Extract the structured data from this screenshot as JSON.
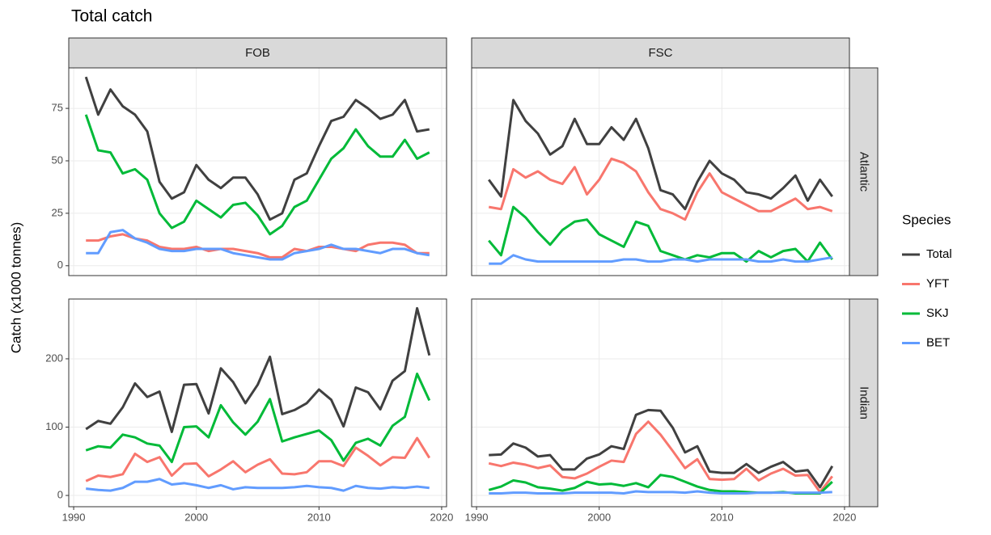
{
  "title": "Total catch",
  "y_label": "Catch (x1000 tonnes)",
  "legend": {
    "title": "Species"
  },
  "facets": {
    "columns": [
      "FOB",
      "FSC"
    ],
    "rows": [
      "Atlantic",
      "Indian"
    ]
  },
  "chart_data": [
    {
      "type": "line",
      "x": [
        1991,
        1992,
        1993,
        1994,
        1995,
        1996,
        1997,
        1998,
        1999,
        2000,
        2001,
        2002,
        2003,
        2004,
        2005,
        2006,
        2007,
        2008,
        2009,
        2010,
        2011,
        2012,
        2013,
        2014,
        2015,
        2016,
        2017,
        2018,
        2019
      ],
      "xlim": [
        1989.6,
        2020.4
      ],
      "xticks": [
        1990,
        2000,
        2010,
        2020
      ],
      "ylim": [
        -4.7,
        94.3
      ],
      "yticks": [
        0,
        25,
        50,
        75
      ],
      "grid": true,
      "series": [
        {
          "name": "Total",
          "color": "#404040",
          "values": [
            90,
            72,
            84,
            76,
            72,
            64,
            40,
            32,
            35,
            48,
            41,
            37,
            42,
            42,
            34,
            22,
            25,
            41,
            44,
            57,
            69,
            71,
            79,
            75,
            70,
            72,
            79,
            64,
            65
          ]
        },
        {
          "name": "YFT",
          "color": "#F8766D",
          "values": [
            12,
            12,
            14,
            15,
            13,
            12,
            9,
            8,
            8,
            9,
            7,
            8,
            8,
            7,
            6,
            4,
            4,
            8,
            7,
            9,
            9,
            8,
            7,
            10,
            11,
            11,
            10,
            6,
            6
          ]
        },
        {
          "name": "SKJ",
          "color": "#00BA38",
          "values": [
            72,
            55,
            54,
            44,
            46,
            41,
            25,
            18,
            21,
            31,
            27,
            23,
            29,
            30,
            24,
            15,
            19,
            28,
            31,
            41,
            51,
            56,
            65,
            57,
            52,
            52,
            60,
            51,
            54
          ]
        },
        {
          "name": "BET",
          "color": "#619CFF",
          "values": [
            6,
            6,
            16,
            17,
            13,
            11,
            8,
            7,
            7,
            8,
            8,
            8,
            6,
            5,
            4,
            3,
            3,
            6,
            7,
            8,
            10,
            8,
            8,
            7,
            6,
            8,
            8,
            6,
            5
          ]
        }
      ]
    },
    {
      "type": "line",
      "x": [
        1991,
        1992,
        1993,
        1994,
        1995,
        1996,
        1997,
        1998,
        1999,
        2000,
        2001,
        2002,
        2003,
        2004,
        2005,
        2006,
        2007,
        2008,
        2009,
        2010,
        2011,
        2012,
        2013,
        2014,
        2015,
        2016,
        2017,
        2018,
        2019
      ],
      "xlim": [
        1989.6,
        2020.4
      ],
      "xticks": [
        1990,
        2000,
        2010,
        2020
      ],
      "ylim": [
        -4.7,
        94.3
      ],
      "yticks": [
        0,
        25,
        50,
        75
      ],
      "grid": true,
      "series": [
        {
          "name": "Total",
          "color": "#404040",
          "values": [
            41,
            33,
            79,
            69,
            63,
            53,
            57,
            70,
            58,
            58,
            66,
            60,
            70,
            56,
            36,
            34,
            27,
            40,
            50,
            44,
            41,
            35,
            34,
            32,
            37,
            43,
            31,
            41,
            33
          ]
        },
        {
          "name": "YFT",
          "color": "#F8766D",
          "values": [
            28,
            27,
            46,
            42,
            45,
            41,
            39,
            47,
            34,
            41,
            51,
            49,
            45,
            35,
            27,
            25,
            22,
            35,
            44,
            35,
            32,
            29,
            26,
            26,
            29,
            32,
            27,
            28,
            26
          ]
        },
        {
          "name": "SKJ",
          "color": "#00BA38",
          "values": [
            12,
            5,
            28,
            23,
            16,
            10,
            17,
            21,
            22,
            15,
            12,
            9,
            21,
            19,
            7,
            5,
            3,
            5,
            4,
            6,
            6,
            2,
            7,
            4,
            7,
            8,
            2,
            11,
            3
          ]
        },
        {
          "name": "BET",
          "color": "#619CFF",
          "values": [
            1,
            1,
            5,
            3,
            2,
            2,
            2,
            2,
            2,
            2,
            2,
            3,
            3,
            2,
            2,
            3,
            3,
            2,
            3,
            3,
            3,
            3,
            2,
            2,
            3,
            2,
            2,
            3,
            4
          ]
        }
      ]
    },
    {
      "type": "line",
      "x": [
        1991,
        1992,
        1993,
        1994,
        1995,
        1996,
        1997,
        1998,
        1999,
        2000,
        2001,
        2002,
        2003,
        2004,
        2005,
        2006,
        2007,
        2008,
        2009,
        2010,
        2011,
        2012,
        2013,
        2014,
        2015,
        2016,
        2017,
        2018,
        2019
      ],
      "xlim": [
        1989.6,
        2020.4
      ],
      "xticks": [
        1990,
        2000,
        2010,
        2020
      ],
      "ylim": [
        -16.5,
        287.5
      ],
      "yticks": [
        0,
        100,
        200
      ],
      "grid": true,
      "series": [
        {
          "name": "Total",
          "color": "#404040",
          "values": [
            97,
            109,
            105,
            129,
            164,
            144,
            152,
            93,
            162,
            163,
            120,
            186,
            166,
            135,
            162,
            203,
            119,
            125,
            135,
            155,
            140,
            101,
            158,
            151,
            126,
            168,
            182,
            274,
            205
          ]
        },
        {
          "name": "YFT",
          "color": "#F8766D",
          "values": [
            21,
            29,
            27,
            31,
            61,
            49,
            56,
            29,
            46,
            47,
            28,
            38,
            50,
            34,
            45,
            53,
            32,
            31,
            34,
            50,
            50,
            43,
            70,
            58,
            44,
            56,
            55,
            84,
            55
          ]
        },
        {
          "name": "SKJ",
          "color": "#00BA38",
          "values": [
            66,
            72,
            70,
            89,
            85,
            76,
            73,
            49,
            100,
            101,
            85,
            132,
            107,
            89,
            108,
            141,
            79,
            85,
            90,
            95,
            81,
            51,
            77,
            83,
            73,
            102,
            115,
            178,
            139
          ]
        },
        {
          "name": "BET",
          "color": "#619CFF",
          "values": [
            10,
            8,
            7,
            11,
            20,
            20,
            24,
            16,
            18,
            15,
            11,
            15,
            9,
            12,
            11,
            11,
            11,
            12,
            14,
            12,
            11,
            7,
            14,
            11,
            10,
            12,
            11,
            13,
            11
          ]
        }
      ]
    },
    {
      "type": "line",
      "x": [
        1991,
        1992,
        1993,
        1994,
        1995,
        1996,
        1997,
        1998,
        1999,
        2000,
        2001,
        2002,
        2003,
        2004,
        2005,
        2006,
        2007,
        2008,
        2009,
        2010,
        2011,
        2012,
        2013,
        2014,
        2015,
        2016,
        2017,
        2018,
        2019
      ],
      "xlim": [
        1989.6,
        2020.4
      ],
      "xticks": [
        1990,
        2000,
        2010,
        2020
      ],
      "ylim": [
        -16.5,
        287.5
      ],
      "yticks": [
        0,
        100,
        200
      ],
      "grid": true,
      "series": [
        {
          "name": "Total",
          "color": "#404040",
          "values": [
            59,
            60,
            76,
            70,
            57,
            59,
            38,
            38,
            54,
            60,
            72,
            68,
            118,
            125,
            124,
            99,
            63,
            72,
            35,
            33,
            33,
            46,
            33,
            42,
            49,
            35,
            37,
            12,
            43
          ]
        },
        {
          "name": "YFT",
          "color": "#F8766D",
          "values": [
            47,
            43,
            48,
            45,
            40,
            44,
            27,
            25,
            32,
            42,
            51,
            49,
            90,
            108,
            89,
            65,
            40,
            53,
            24,
            23,
            24,
            39,
            22,
            32,
            39,
            29,
            30,
            5,
            28
          ]
        },
        {
          "name": "SKJ",
          "color": "#00BA38",
          "values": [
            8,
            13,
            22,
            19,
            12,
            10,
            7,
            11,
            20,
            16,
            17,
            14,
            18,
            12,
            30,
            27,
            20,
            13,
            8,
            6,
            6,
            5,
            4,
            4,
            5,
            3,
            3,
            3,
            20
          ]
        },
        {
          "name": "BET",
          "color": "#619CFF",
          "values": [
            3,
            3,
            4,
            4,
            3,
            3,
            3,
            4,
            4,
            4,
            4,
            3,
            6,
            5,
            5,
            5,
            4,
            6,
            4,
            3,
            3,
            3,
            4,
            4,
            4,
            4,
            4,
            4,
            5
          ]
        }
      ]
    }
  ]
}
